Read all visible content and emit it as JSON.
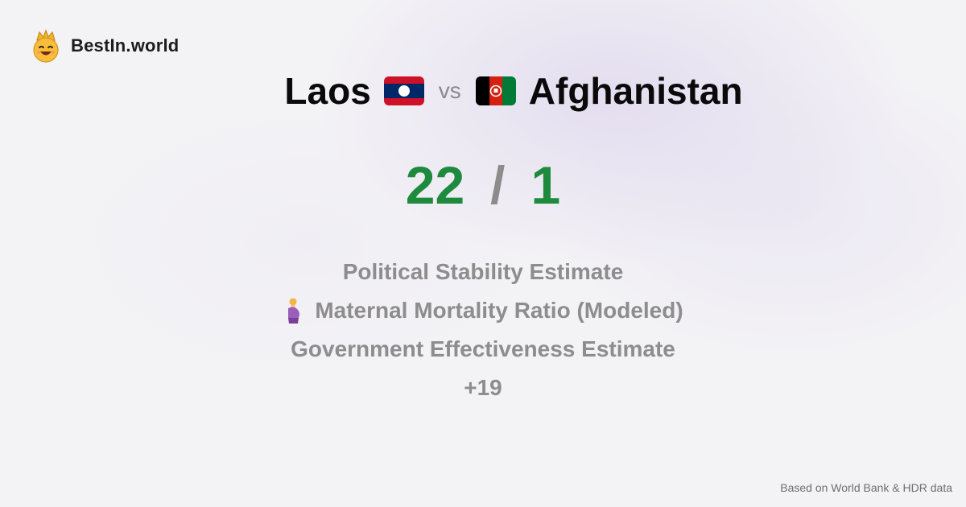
{
  "brand": {
    "name": "BestIn.world",
    "logo_icon": "crowned-smiley-icon"
  },
  "comparison": {
    "left_country": "Laos",
    "left_flag_icon": "laos-flag-icon",
    "vs_label": "vs",
    "right_country": "Afghanistan",
    "right_flag_icon": "afghanistan-flag-icon"
  },
  "score": {
    "left": "22",
    "separator": "/",
    "right": "1",
    "color": "#1d8a3e"
  },
  "metrics": {
    "items": [
      {
        "label": "Political Stability Estimate"
      },
      {
        "label": "Maternal Mortality Ratio (Modeled)",
        "icon": "pregnant-woman-icon"
      },
      {
        "label": "Government Effectiveness Estimate"
      }
    ],
    "more_label": "+19"
  },
  "footer": {
    "source_text": "Based on World Bank & HDR data"
  }
}
